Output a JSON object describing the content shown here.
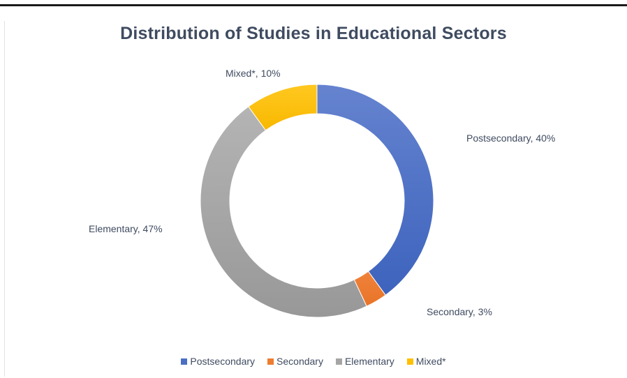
{
  "chart_data": {
    "type": "pie",
    "variant": "donut",
    "title": "Distribution of Studies in Educational Sectors",
    "categories": [
      "Postsecondary",
      "Secondary",
      "Elementary",
      "Mixed*"
    ],
    "values": [
      40,
      3,
      47,
      10
    ],
    "unit": "%",
    "data_labels": [
      "Postsecondary, 40%",
      "Secondary, 3%",
      "Elementary, 47%",
      "Mixed*, 10%"
    ],
    "colors": [
      "#4a6fc4",
      "#ed7d31",
      "#a5a5a5",
      "#ffc000"
    ],
    "legend": {
      "position": "bottom",
      "entries": [
        "Postsecondary",
        "Secondary",
        "Elementary",
        "Mixed*"
      ]
    }
  }
}
